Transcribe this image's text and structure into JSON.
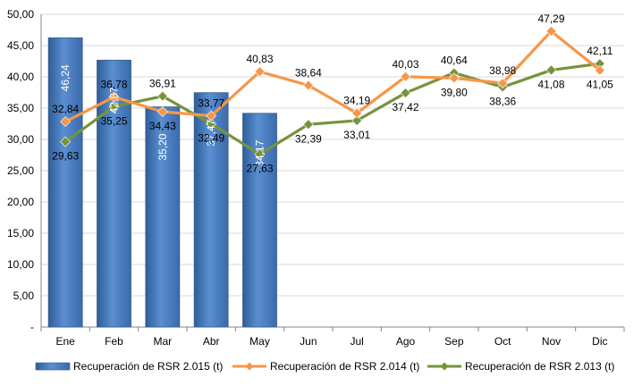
{
  "chart_data": {
    "type": "bar",
    "categories": [
      "Ene",
      "Feb",
      "Mar",
      "Abr",
      "May",
      "Jun",
      "Jul",
      "Ago",
      "Sep",
      "Oct",
      "Nov",
      "Dic"
    ],
    "y_ticks": [
      "-",
      "5,00",
      "10,00",
      "15,00",
      "20,00",
      "25,00",
      "30,00",
      "35,00",
      "40,00",
      "45,00",
      "50,00"
    ],
    "ylim": [
      0,
      50
    ],
    "grid": true,
    "legend_position": "bottom",
    "series": [
      {
        "name": "Recuperación de RSR 2.015 (t)",
        "type": "bar",
        "color": "#4f81bd",
        "values": [
          46.24,
          42.67,
          35.2,
          37.47,
          34.17,
          null,
          null,
          null,
          null,
          null,
          null,
          null
        ],
        "labels": [
          "46,24",
          "42,67",
          "35,20",
          "37,47",
          "34,17"
        ]
      },
      {
        "name": "Recuperación de RSR 2.014 (t)",
        "type": "line",
        "color": "#f79646",
        "values": [
          32.84,
          36.78,
          34.43,
          33.77,
          40.83,
          38.64,
          34.19,
          40.03,
          39.8,
          38.98,
          47.29,
          41.05
        ],
        "labels": [
          "32,84",
          "36,78",
          "34,43",
          "33,77",
          "40,83",
          "38,64",
          "34,19",
          "40,03",
          "39,80",
          "38,98",
          "47,29",
          "41,05"
        ]
      },
      {
        "name": "Recuperación de RSR 2.013 (t)",
        "type": "line",
        "color": "#77933c",
        "values": [
          29.63,
          35.25,
          36.91,
          32.49,
          27.63,
          32.39,
          33.01,
          37.42,
          40.64,
          38.36,
          41.08,
          42.11
        ],
        "labels": [
          "29,63",
          "35,25",
          "36,91",
          "32,49",
          "27,63",
          "32,39",
          "33,01",
          "37,42",
          "40,64",
          "38,36",
          "41,08",
          "42,11"
        ]
      }
    ]
  }
}
